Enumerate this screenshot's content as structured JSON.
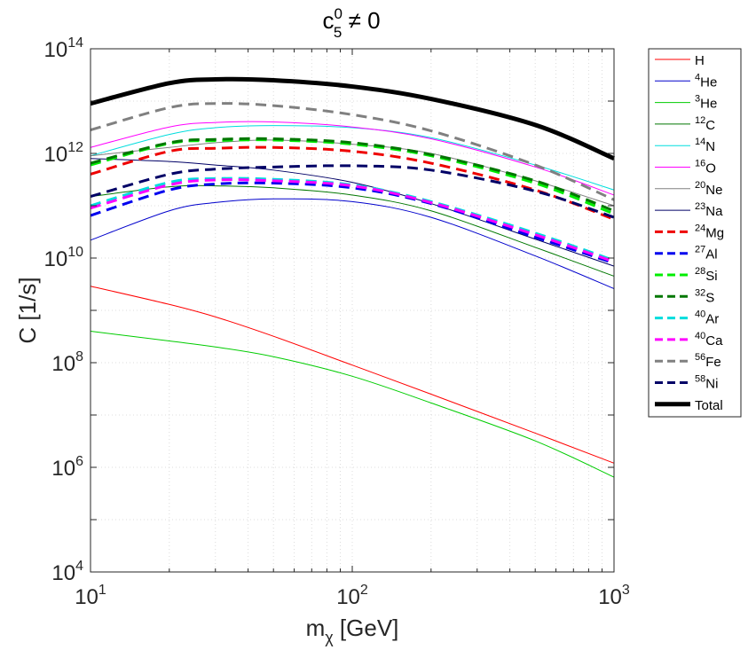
{
  "chart_data": {
    "type": "line",
    "title": {
      "base": "c",
      "sup": "0",
      "sub": "5",
      "tail": " ≠ 0"
    },
    "xlabel": {
      "base": "m",
      "sub": "χ",
      "tail": " [GeV]"
    },
    "ylabel": "C [1/s]",
    "xscale": "log",
    "yscale": "log",
    "xlim": [
      10,
      1000
    ],
    "ylim": [
      10000,
      100000000000000
    ],
    "grid": true,
    "legend_position": "outside-right",
    "x_ticks": [
      {
        "base": "10",
        "exp": "1",
        "value": 10
      },
      {
        "base": "10",
        "exp": "2",
        "value": 100
      },
      {
        "base": "10",
        "exp": "3",
        "value": 1000
      }
    ],
    "y_ticks": [
      {
        "base": "10",
        "exp": "4",
        "value": 10000
      },
      {
        "base": "10",
        "exp": "6",
        "value": 1000000
      },
      {
        "base": "10",
        "exp": "8",
        "value": 100000000
      },
      {
        "base": "10",
        "exp": "10",
        "value": 10000000000
      },
      {
        "base": "10",
        "exp": "12",
        "value": 1000000000000
      },
      {
        "base": "10",
        "exp": "14",
        "value": 100000000000000
      }
    ],
    "x": [
      10,
      20,
      30,
      50,
      100,
      200,
      500,
      1000
    ],
    "series": [
      {
        "name": "H",
        "sup": "",
        "base": "H",
        "color": "#ff0000",
        "style": "solid",
        "width": 1,
        "values": [
          2900000000.0,
          1300000000.0,
          750000000.0,
          320000000.0,
          90000000.0,
          25000000.0,
          4500000.0,
          1200000.0
        ]
      },
      {
        "name": "4He",
        "sup": "4",
        "base": "He",
        "color": "#0000cc",
        "style": "solid",
        "width": 1,
        "values": [
          22000000000.0,
          80000000000.0,
          115000000000.0,
          135000000000.0,
          120000000000.0,
          60000000000.0,
          11000000000.0,
          2600000000.0
        ]
      },
      {
        "name": "3He",
        "sup": "3",
        "base": "He",
        "color": "#00cc00",
        "style": "solid",
        "width": 1,
        "values": [
          400000000.0,
          260000000.0,
          200000000.0,
          130000000.0,
          55000000.0,
          17000000.0,
          3200000.0,
          650000.0
        ]
      },
      {
        "name": "12C",
        "sup": "12",
        "base": "C",
        "color": "#007700",
        "style": "solid",
        "width": 1,
        "values": [
          150000000000.0,
          230000000000.0,
          240000000000.0,
          220000000000.0,
          160000000000.0,
          80000000000.0,
          16000000000.0,
          4500000000.0
        ]
      },
      {
        "name": "14N",
        "sup": "14",
        "base": "N",
        "color": "#00dddd",
        "style": "solid",
        "width": 1,
        "values": [
          900000000000.0,
          2300000000000.0,
          3100000000000.0,
          3400000000000.0,
          3100000000000.0,
          2000000000000.0,
          600000000000.0,
          200000000000.0
        ]
      },
      {
        "name": "16O",
        "sup": "16",
        "base": "O",
        "color": "#ff00ff",
        "style": "solid",
        "width": 1,
        "values": [
          1300000000000.0,
          3200000000000.0,
          3900000000000.0,
          4000000000000.0,
          3200000000000.0,
          1900000000000.0,
          550000000000.0,
          160000000000.0
        ]
      },
      {
        "name": "20Ne",
        "sup": "20",
        "base": "Ne",
        "color": "#808080",
        "style": "solid",
        "width": 1,
        "values": [
          900000000000.0,
          1300000000000.0,
          1600000000000.0,
          1800000000000.0,
          1500000000000.0,
          1000000000000.0,
          300000000000.0,
          100000000000.0
        ]
      },
      {
        "name": "23Na",
        "sup": "23",
        "base": "Na",
        "color": "#000066",
        "style": "solid",
        "width": 1,
        "values": [
          800000000000.0,
          700000000000.0,
          600000000000.0,
          480000000000.0,
          280000000000.0,
          110000000000.0,
          23000000000.0,
          7000000000.0
        ]
      },
      {
        "name": "24Mg",
        "sup": "24",
        "base": "Mg",
        "color": "#ee0000",
        "style": "dashed",
        "width": 3,
        "values": [
          400000000000.0,
          1100000000000.0,
          1250000000000.0,
          1300000000000.0,
          1100000000000.0,
          650000000000.0,
          200000000000.0,
          55000000000.0
        ]
      },
      {
        "name": "27Al",
        "sup": "27",
        "base": "Al",
        "color": "#0000ee",
        "style": "dashed",
        "width": 3,
        "values": [
          65000000000.0,
          200000000000.0,
          260000000000.0,
          270000000000.0,
          220000000000.0,
          110000000000.0,
          25000000000.0,
          8000000000.0
        ]
      },
      {
        "name": "28Si",
        "sup": "28",
        "base": "Si",
        "color": "#00ee00",
        "style": "dashed",
        "width": 3,
        "values": [
          600000000000.0,
          1550000000000.0,
          1750000000000.0,
          1800000000000.0,
          1500000000000.0,
          900000000000.0,
          270000000000.0,
          70000000000.0
        ]
      },
      {
        "name": "32S",
        "sup": "32",
        "base": "S",
        "color": "#007700",
        "style": "dashed",
        "width": 3,
        "values": [
          650000000000.0,
          1600000000000.0,
          1850000000000.0,
          1900000000000.0,
          1600000000000.0,
          950000000000.0,
          300000000000.0,
          80000000000.0
        ]
      },
      {
        "name": "40Ar",
        "sup": "40",
        "base": "Ar",
        "color": "#00dddd",
        "style": "dashed",
        "width": 3,
        "values": [
          100000000000.0,
          280000000000.0,
          330000000000.0,
          320000000000.0,
          250000000000.0,
          120000000000.0,
          30000000000.0,
          9000000000.0
        ]
      },
      {
        "name": "40Ca",
        "sup": "40",
        "base": "Ca",
        "color": "#ff00ff",
        "style": "dashed",
        "width": 3,
        "values": [
          90000000000.0,
          250000000000.0,
          310000000000.0,
          300000000000.0,
          240000000000.0,
          115000000000.0,
          28000000000.0,
          8500000000.0
        ]
      },
      {
        "name": "56Fe",
        "sup": "56",
        "base": "Fe",
        "color": "#808080",
        "style": "dashed",
        "width": 3,
        "values": [
          2800000000000.0,
          7500000000000.0,
          9000000000000.0,
          8200000000000.0,
          5500000000000.0,
          2700000000000.0,
          600000000000.0,
          130000000000.0
        ]
      },
      {
        "name": "58Ni",
        "sup": "58",
        "base": "Ni",
        "color": "#000066",
        "style": "dashed",
        "width": 3,
        "values": [
          150000000000.0,
          400000000000.0,
          500000000000.0,
          550000000000.0,
          580000000000.0,
          480000000000.0,
          190000000000.0,
          60000000000.0
        ]
      },
      {
        "name": "Total",
        "sup": "",
        "base": "Total",
        "color": "#000000",
        "style": "solid",
        "width": 5,
        "values": [
          9000000000000.0,
          22000000000000.0,
          26000000000000.0,
          25000000000000.0,
          19000000000000.0,
          11000000000000.0,
          3500000000000.0,
          800000000000.0
        ]
      }
    ]
  }
}
